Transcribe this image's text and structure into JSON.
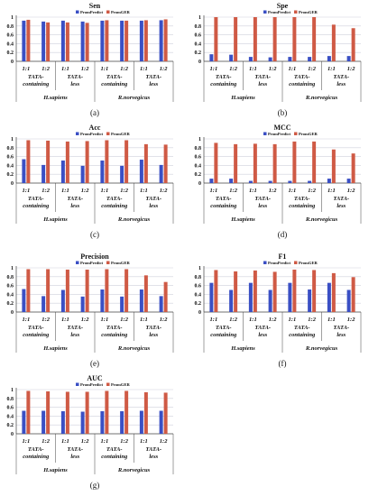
{
  "colors": {
    "prompredict": "#3a4fc4",
    "promger": "#cf5a45",
    "grid": "#cfd0dc",
    "axis": "#404040",
    "text": "#111111"
  },
  "legend": [
    "PromPredict",
    "PromGER"
  ],
  "xaxis": {
    "ratios": [
      "1:1",
      "1:2",
      "1:1",
      "1:2",
      "1:1",
      "1:2",
      "1:1",
      "1:2"
    ],
    "groups": [
      {
        "line1": "TATA-",
        "line2": "containing"
      },
      {
        "line1": "TATA-",
        "line2": "less"
      },
      {
        "line1": "TATA-",
        "line2": "containing"
      },
      {
        "line1": "TATA-",
        "line2": "less"
      }
    ],
    "species": [
      "H.sapiens",
      "R.norvegicus"
    ]
  },
  "chart_data": [
    {
      "type": "bar",
      "title": "Sen",
      "panel_label": "(a)",
      "ylim": [
        0,
        1
      ],
      "yticks": [
        "0",
        "0.2",
        "0.4",
        "0.6",
        "0.8",
        "1"
      ],
      "categories": [
        "1:1",
        "1:2",
        "1:1",
        "1:2",
        "1:1",
        "1:2",
        "1:1",
        "1:2"
      ],
      "series": [
        {
          "name": "PromPredict",
          "values": [
            0.92,
            0.9,
            0.92,
            0.9,
            0.92,
            0.92,
            0.92,
            0.93
          ]
        },
        {
          "name": "PromGER",
          "values": [
            0.94,
            0.88,
            0.88,
            0.87,
            0.93,
            0.92,
            0.93,
            0.95
          ]
        }
      ]
    },
    {
      "type": "bar",
      "title": "Spe",
      "panel_label": "(b)",
      "ylim": [
        0,
        1
      ],
      "yticks": [
        "0",
        "0.2",
        "0.4",
        "0.6",
        "0.8",
        "1"
      ],
      "categories": [
        "1:1",
        "1:2",
        "1:1",
        "1:2",
        "1:1",
        "1:2",
        "1:1",
        "1:2"
      ],
      "series": [
        {
          "name": "PromPredict",
          "values": [
            0.16,
            0.15,
            0.1,
            0.09,
            0.1,
            0.1,
            0.12,
            0.12
          ]
        },
        {
          "name": "PromGER",
          "values": [
            1.0,
            1.0,
            1.0,
            1.0,
            1.0,
            1.0,
            0.83,
            0.75
          ]
        }
      ]
    },
    {
      "type": "bar",
      "title": "Acc",
      "panel_label": "(c)",
      "ylim": [
        0,
        1
      ],
      "yticks": [
        "0",
        "0.2",
        "0.4",
        "0.6",
        "0.8",
        "1"
      ],
      "categories": [
        "1:1",
        "1:2",
        "1:1",
        "1:2",
        "1:1",
        "1:2",
        "1:1",
        "1:2"
      ],
      "series": [
        {
          "name": "PromPredict",
          "values": [
            0.54,
            0.41,
            0.51,
            0.39,
            0.51,
            0.39,
            0.53,
            0.41
          ]
        },
        {
          "name": "PromGER",
          "values": [
            0.97,
            0.96,
            0.94,
            0.95,
            0.97,
            0.97,
            0.88,
            0.87
          ]
        }
      ]
    },
    {
      "type": "bar",
      "title": "MCC",
      "panel_label": "(d)",
      "ylim": [
        0,
        1
      ],
      "yticks": [
        "0",
        "0.2",
        "0.4",
        "0.6",
        "0.8",
        "1"
      ],
      "categories": [
        "1:1",
        "1:2",
        "1:1",
        "1:2",
        "1:1",
        "1:2",
        "1:1",
        "1:2"
      ],
      "series": [
        {
          "name": "PromPredict",
          "values": [
            0.1,
            0.1,
            0.05,
            0.05,
            0.05,
            0.05,
            0.1,
            0.1
          ]
        },
        {
          "name": "PromGER",
          "values": [
            0.91,
            0.88,
            0.89,
            0.88,
            0.94,
            0.94,
            0.76,
            0.67
          ]
        }
      ]
    },
    {
      "type": "bar",
      "title": "Precision",
      "panel_label": "(e)",
      "ylim": [
        0,
        1
      ],
      "yticks": [
        "0",
        "0.2",
        "0.4",
        "0.6",
        "0.8",
        "1"
      ],
      "categories": [
        "1:1",
        "1:2",
        "1:1",
        "1:2",
        "1:1",
        "1:2",
        "1:1",
        "1:2"
      ],
      "series": [
        {
          "name": "PromPredict",
          "values": [
            0.52,
            0.36,
            0.5,
            0.35,
            0.51,
            0.35,
            0.51,
            0.36
          ]
        },
        {
          "name": "PromGER",
          "values": [
            0.97,
            0.97,
            0.96,
            0.96,
            0.97,
            0.97,
            0.83,
            0.68
          ]
        }
      ]
    },
    {
      "type": "bar",
      "title": "F1",
      "panel_label": "(f)",
      "ylim": [
        0,
        1
      ],
      "yticks": [
        "0",
        "0.2",
        "0.4",
        "0.6",
        "0.8",
        "1"
      ],
      "categories": [
        "1:1",
        "1:2",
        "1:1",
        "1:2",
        "1:1",
        "1:2",
        "1:1",
        "1:2"
      ],
      "series": [
        {
          "name": "PromPredict",
          "values": [
            0.66,
            0.5,
            0.66,
            0.5,
            0.66,
            0.51,
            0.66,
            0.5
          ]
        },
        {
          "name": "PromGER",
          "values": [
            0.95,
            0.92,
            0.94,
            0.91,
            0.96,
            0.95,
            0.88,
            0.79
          ]
        }
      ]
    },
    {
      "type": "bar",
      "title": "AUC",
      "panel_label": "(g)",
      "ylim": [
        0,
        1
      ],
      "yticks": [
        "0",
        "0.2",
        "0.4",
        "0.6",
        "0.8",
        "1"
      ],
      "categories": [
        "1:1",
        "1:2",
        "1:1",
        "1:2",
        "1:1",
        "1:2",
        "1:1",
        "1:2"
      ],
      "series": [
        {
          "name": "PromPredict",
          "values": [
            0.52,
            0.52,
            0.51,
            0.5,
            0.51,
            0.51,
            0.52,
            0.52
          ]
        },
        {
          "name": "PromGER",
          "values": [
            0.97,
            0.96,
            0.95,
            0.95,
            0.97,
            0.97,
            0.94,
            0.93
          ]
        }
      ]
    }
  ]
}
